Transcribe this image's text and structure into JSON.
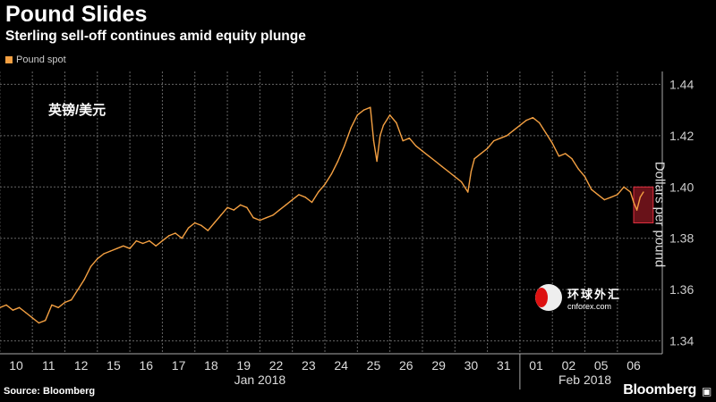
{
  "title": "Pound Slides",
  "subtitle": "Sterling sell-off continues amid equity plunge",
  "legend": "Pound spot",
  "overlay_label": "英镑/美元",
  "source": "Source: Bloomberg",
  "brand": "Bloomberg",
  "watermark": {
    "cn": "环球外汇",
    "en": "cnforex.com"
  },
  "colors": {
    "line": "#f4a042",
    "highlight": "#c0202e",
    "grid": "#666666"
  },
  "chart_data": {
    "type": "line",
    "title": "Pound Slides",
    "subtitle": "Sterling sell-off continues amid equity plunge",
    "ylabel": "Dollars per pound",
    "xlabel": "",
    "ylim": [
      1.335,
      1.445
    ],
    "yticks": [
      1.34,
      1.36,
      1.38,
      1.4,
      1.42,
      1.44
    ],
    "ytick_labels": [
      "1.34",
      "1.36",
      "1.38",
      "1.40",
      "1.42",
      "1.44"
    ],
    "categories": [
      "10",
      "11",
      "12",
      "15",
      "16",
      "17",
      "18",
      "19",
      "22",
      "23",
      "24",
      "25",
      "26",
      "29",
      "30",
      "31",
      "01",
      "02",
      "05",
      "06"
    ],
    "month_labels": [
      {
        "label": "Jan 2018",
        "from": 0,
        "to": 15
      },
      {
        "label": "Feb 2018",
        "from": 16,
        "to": 19
      }
    ],
    "series": [
      {
        "name": "Pound spot",
        "x": [
          -0.5,
          -0.3,
          -0.1,
          0.1,
          0.3,
          0.5,
          0.7,
          0.9,
          1.1,
          1.3,
          1.5,
          1.7,
          1.9,
          2.1,
          2.3,
          2.5,
          2.7,
          2.9,
          3.1,
          3.3,
          3.5,
          3.7,
          3.9,
          4.1,
          4.3,
          4.5,
          4.7,
          4.9,
          5.1,
          5.3,
          5.5,
          5.7,
          5.9,
          6.1,
          6.3,
          6.5,
          6.7,
          6.9,
          7.1,
          7.3,
          7.5,
          7.7,
          7.9,
          8.1,
          8.3,
          8.5,
          8.7,
          8.9,
          9.1,
          9.3,
          9.5,
          9.7,
          9.9,
          10.1,
          10.3,
          10.5,
          10.7,
          10.9,
          11.0,
          11.1,
          11.2,
          11.3,
          11.5,
          11.7,
          11.9,
          12.1,
          12.3,
          12.5,
          12.7,
          12.9,
          13.1,
          13.3,
          13.5,
          13.7,
          13.9,
          14.0,
          14.1,
          14.3,
          14.5,
          14.7,
          14.9,
          15.1,
          15.3,
          15.5,
          15.7,
          15.9,
          16.1,
          16.3,
          16.5,
          16.7,
          16.9,
          17.1,
          17.3,
          17.5,
          17.7,
          17.9,
          18.1,
          18.3,
          18.5,
          18.7,
          18.9,
          19.0,
          19.1,
          19.2,
          19.3
        ],
        "values": [
          1.353,
          1.354,
          1.352,
          1.353,
          1.351,
          1.349,
          1.347,
          1.348,
          1.354,
          1.353,
          1.355,
          1.356,
          1.36,
          1.364,
          1.369,
          1.372,
          1.374,
          1.375,
          1.376,
          1.377,
          1.376,
          1.379,
          1.378,
          1.379,
          1.377,
          1.379,
          1.381,
          1.382,
          1.38,
          1.384,
          1.386,
          1.385,
          1.383,
          1.386,
          1.389,
          1.392,
          1.391,
          1.393,
          1.392,
          1.388,
          1.387,
          1.388,
          1.389,
          1.391,
          1.393,
          1.395,
          1.397,
          1.396,
          1.394,
          1.398,
          1.401,
          1.405,
          1.41,
          1.416,
          1.423,
          1.428,
          1.43,
          1.431,
          1.418,
          1.41,
          1.42,
          1.424,
          1.428,
          1.425,
          1.418,
          1.419,
          1.416,
          1.414,
          1.412,
          1.41,
          1.408,
          1.406,
          1.404,
          1.402,
          1.398,
          1.406,
          1.411,
          1.413,
          1.415,
          1.418,
          1.419,
          1.42,
          1.422,
          1.424,
          1.426,
          1.427,
          1.425,
          1.421,
          1.417,
          1.412,
          1.413,
          1.411,
          1.407,
          1.404,
          1.399,
          1.397,
          1.395,
          1.396,
          1.397,
          1.4,
          1.398,
          1.394,
          1.391,
          1.396,
          1.398
        ]
      }
    ],
    "highlight": {
      "x_from": 19.0,
      "x_to": 19.6,
      "y_from": 1.386,
      "y_to": 1.4
    }
  }
}
